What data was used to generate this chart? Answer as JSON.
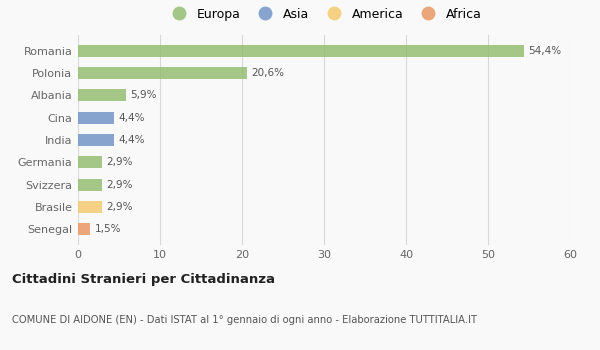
{
  "categories": [
    "Senegal",
    "Brasile",
    "Svizzera",
    "Germania",
    "India",
    "Cina",
    "Albania",
    "Polonia",
    "Romania"
  ],
  "values": [
    1.5,
    2.9,
    2.9,
    2.9,
    4.4,
    4.4,
    5.9,
    20.6,
    54.4
  ],
  "labels": [
    "1,5%",
    "2,9%",
    "2,9%",
    "2,9%",
    "4,4%",
    "4,4%",
    "5,9%",
    "20,6%",
    "54,4%"
  ],
  "bar_colors": [
    "#e8935a",
    "#f5c869",
    "#8fba6a",
    "#8fba6a",
    "#6b8fc4",
    "#6b8fc4",
    "#8fba6a",
    "#8fba6a",
    "#8fba6a"
  ],
  "legend_labels": [
    "Europa",
    "Asia",
    "America",
    "Africa"
  ],
  "legend_colors": [
    "#8fba6a",
    "#6b8fc4",
    "#f5c869",
    "#e8935a"
  ],
  "xlim": [
    0,
    60
  ],
  "xticks": [
    0,
    10,
    20,
    30,
    40,
    50,
    60
  ],
  "title_main": "Cittadini Stranieri per Cittadinanza",
  "title_sub": "COMUNE DI AIDONE (EN) - Dati ISTAT al 1° gennaio di ogni anno - Elaborazione TUTTITALIA.IT",
  "background_color": "#f9f9f9",
  "grid_color": "#d8d8d8",
  "bar_alpha": 0.8,
  "bar_height": 0.55
}
